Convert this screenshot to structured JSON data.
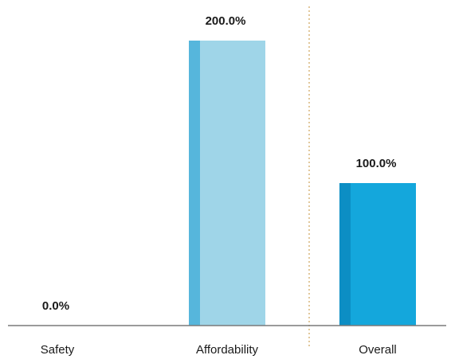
{
  "chart_data": {
    "type": "bar",
    "categories": [
      "Safety",
      "Affordability",
      "Overall"
    ],
    "values": [
      0.0,
      200.0,
      100.0
    ],
    "value_labels": [
      "0.0%",
      "200.0%",
      "100.0%"
    ],
    "title": "",
    "xlabel": "",
    "ylabel": "",
    "ylim": [
      0,
      200
    ],
    "grid": false,
    "legend": "none",
    "separator_after_category": 1,
    "colors": {
      "Affordability": {
        "face": "#9fd5e8",
        "edge": "#56b6dc"
      },
      "Overall": {
        "face": "#14a7dc",
        "edge": "#0c8ec4"
      },
      "axis": "#7a7a7a",
      "separator": "#d8b67a"
    }
  }
}
